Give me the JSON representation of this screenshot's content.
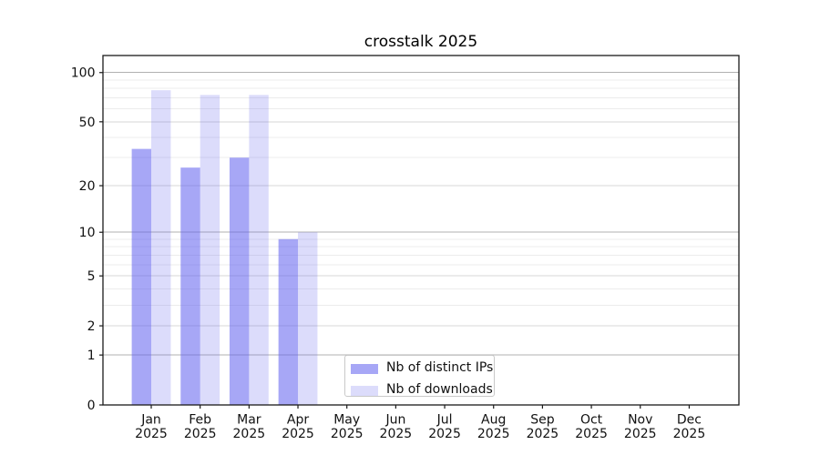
{
  "chart_data": {
    "type": "bar",
    "title": "crosstalk 2025",
    "categories": [
      "Jan",
      "Feb",
      "Mar",
      "Apr",
      "May",
      "Jun",
      "Jul",
      "Aug",
      "Sep",
      "Oct",
      "Nov",
      "Dec"
    ],
    "category_year": "2025",
    "series": [
      {
        "name": "Nb of distinct IPs",
        "color": "rgba(94,94,238,0.55)",
        "values": [
          34,
          26,
          30,
          9,
          0,
          0,
          0,
          0,
          0,
          0,
          0,
          0
        ]
      },
      {
        "name": "Nb of downloads",
        "color": "rgba(94,94,238,0.22)",
        "values": [
          78,
          73,
          73,
          10,
          0,
          0,
          0,
          0,
          0,
          0,
          0,
          0
        ]
      }
    ],
    "yscale": "log1p",
    "ylim": [
      0,
      127
    ],
    "y_ticks": [
      100,
      50,
      20,
      10,
      5,
      2,
      1,
      0
    ],
    "y_gridlines_decade": [
      1,
      10,
      100
    ],
    "y_gridlines_minor_labeled": [
      2,
      5,
      20,
      50
    ],
    "y_gridlines_minor": [
      3,
      4,
      6,
      7,
      8,
      9,
      30,
      40,
      60,
      70,
      80,
      90
    ],
    "legend_position": "lower center",
    "grid": true,
    "colors": {
      "grid_decade": "#b1b1b1",
      "grid_minor_labeled": "#d7d7d7",
      "grid_minor": "#ececec",
      "spine": "#1a1a1a",
      "text": "#111111",
      "background": "#ffffff"
    }
  }
}
